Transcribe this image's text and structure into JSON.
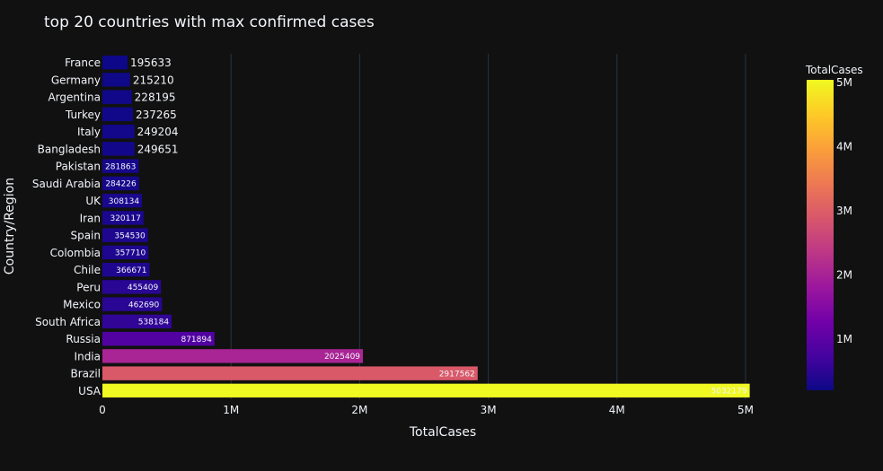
{
  "chart_data": {
    "type": "bar",
    "orientation": "horizontal",
    "title": "top 20 countries with max confirmed cases",
    "xlabel": "TotalCases",
    "ylabel": "Country/Region",
    "xlim": [
      0,
      5000000
    ],
    "xticks": [
      {
        "value": 0,
        "label": "0"
      },
      {
        "value": 1000000,
        "label": "1M"
      },
      {
        "value": 2000000,
        "label": "2M"
      },
      {
        "value": 3000000,
        "label": "3M"
      },
      {
        "value": 4000000,
        "label": "4M"
      },
      {
        "value": 5000000,
        "label": "5M"
      }
    ],
    "categories": [
      "France",
      "Germany",
      "Argentina",
      "Turkey",
      "Italy",
      "Bangladesh",
      "Pakistan",
      "Saudi Arabia",
      "UK",
      "Iran",
      "Spain",
      "Colombia",
      "Chile",
      "Peru",
      "Mexico",
      "South Africa",
      "Russia",
      "India",
      "Brazil",
      "USA"
    ],
    "values": [
      195633,
      215210,
      228195,
      237265,
      249204,
      249651,
      281863,
      284226,
      308134,
      320117,
      354530,
      357710,
      366671,
      455409,
      462690,
      538184,
      871894,
      2025409,
      2917562,
      5032179
    ],
    "grid": true,
    "colorbar": {
      "title": "TotalCases",
      "colorscale": "plasma",
      "range": [
        195633,
        5032179
      ],
      "ticks": [
        {
          "value": 1000000,
          "label": "1M"
        },
        {
          "value": 2000000,
          "label": "2M"
        },
        {
          "value": 3000000,
          "label": "3M"
        },
        {
          "value": 4000000,
          "label": "4M"
        },
        {
          "value": 5000000,
          "label": "5M"
        }
      ]
    },
    "colors": {
      "background": "#111111",
      "grid": "#283442",
      "text": "#f2f5fa"
    }
  }
}
